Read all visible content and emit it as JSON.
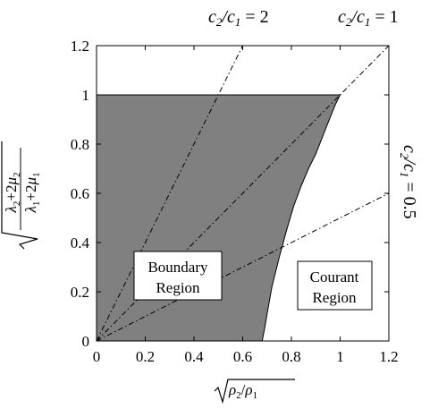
{
  "chart_data": {
    "type": "area",
    "title": "",
    "xlim": [
      0,
      1.2
    ],
    "ylim": [
      0,
      1.2
    ],
    "grid": false,
    "x_ticks": [
      "0",
      "0.2",
      "0.4",
      "0.6",
      "0.8",
      "1",
      "1.2"
    ],
    "y_ticks": [
      "0",
      "0.2",
      "0.4",
      "0.6",
      "0.8",
      "1",
      "1.2"
    ],
    "xlabel": {
      "radical": "ρ2/ρ1"
    },
    "ylabel": {
      "numerator": "λ2+2μ2",
      "denominator": "λ1+2μ1"
    },
    "fill_color": "#808080",
    "boundary_region": {
      "label_lines": [
        "Boundary",
        "Region"
      ],
      "x": [
        0,
        0,
        1,
        0.98,
        0.96,
        0.94,
        0.92,
        0.9,
        0.87,
        0.84,
        0.81,
        0.78,
        0.75,
        0.72,
        0.7,
        0.69,
        0.68
      ],
      "y": [
        0,
        1,
        1,
        0.96,
        0.91,
        0.86,
        0.81,
        0.76,
        0.7,
        0.63,
        0.55,
        0.45,
        0.34,
        0.22,
        0.11,
        0.05,
        0
      ]
    },
    "courant_region": {
      "label_lines": [
        "Courant",
        "Region"
      ]
    },
    "reference_lines": [
      {
        "ratio_label": {
          "num": "c2",
          "den": "c1",
          "value": "2"
        },
        "x": [
          0,
          0.6
        ],
        "y": [
          0,
          1.2
        ]
      },
      {
        "ratio_label": {
          "num": "c2",
          "den": "c1",
          "value": "1"
        },
        "x": [
          0,
          1.2
        ],
        "y": [
          0,
          1.2
        ]
      },
      {
        "ratio_label": {
          "num": "c2",
          "den": "c1",
          "value": "0.5"
        },
        "x": [
          0,
          1.2
        ],
        "y": [
          0,
          0.6
        ]
      }
    ]
  }
}
